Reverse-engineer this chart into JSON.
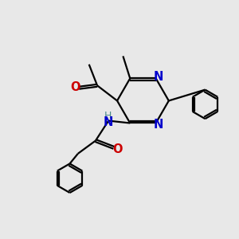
{
  "bg_color": "#e8e8e8",
  "bond_color": "#000000",
  "N_color": "#0000cc",
  "O_color": "#cc0000",
  "H_color": "#4a8a8a",
  "line_width": 1.6,
  "font_size": 10.5,
  "xlim": [
    0,
    10
  ],
  "ylim": [
    0,
    10
  ]
}
